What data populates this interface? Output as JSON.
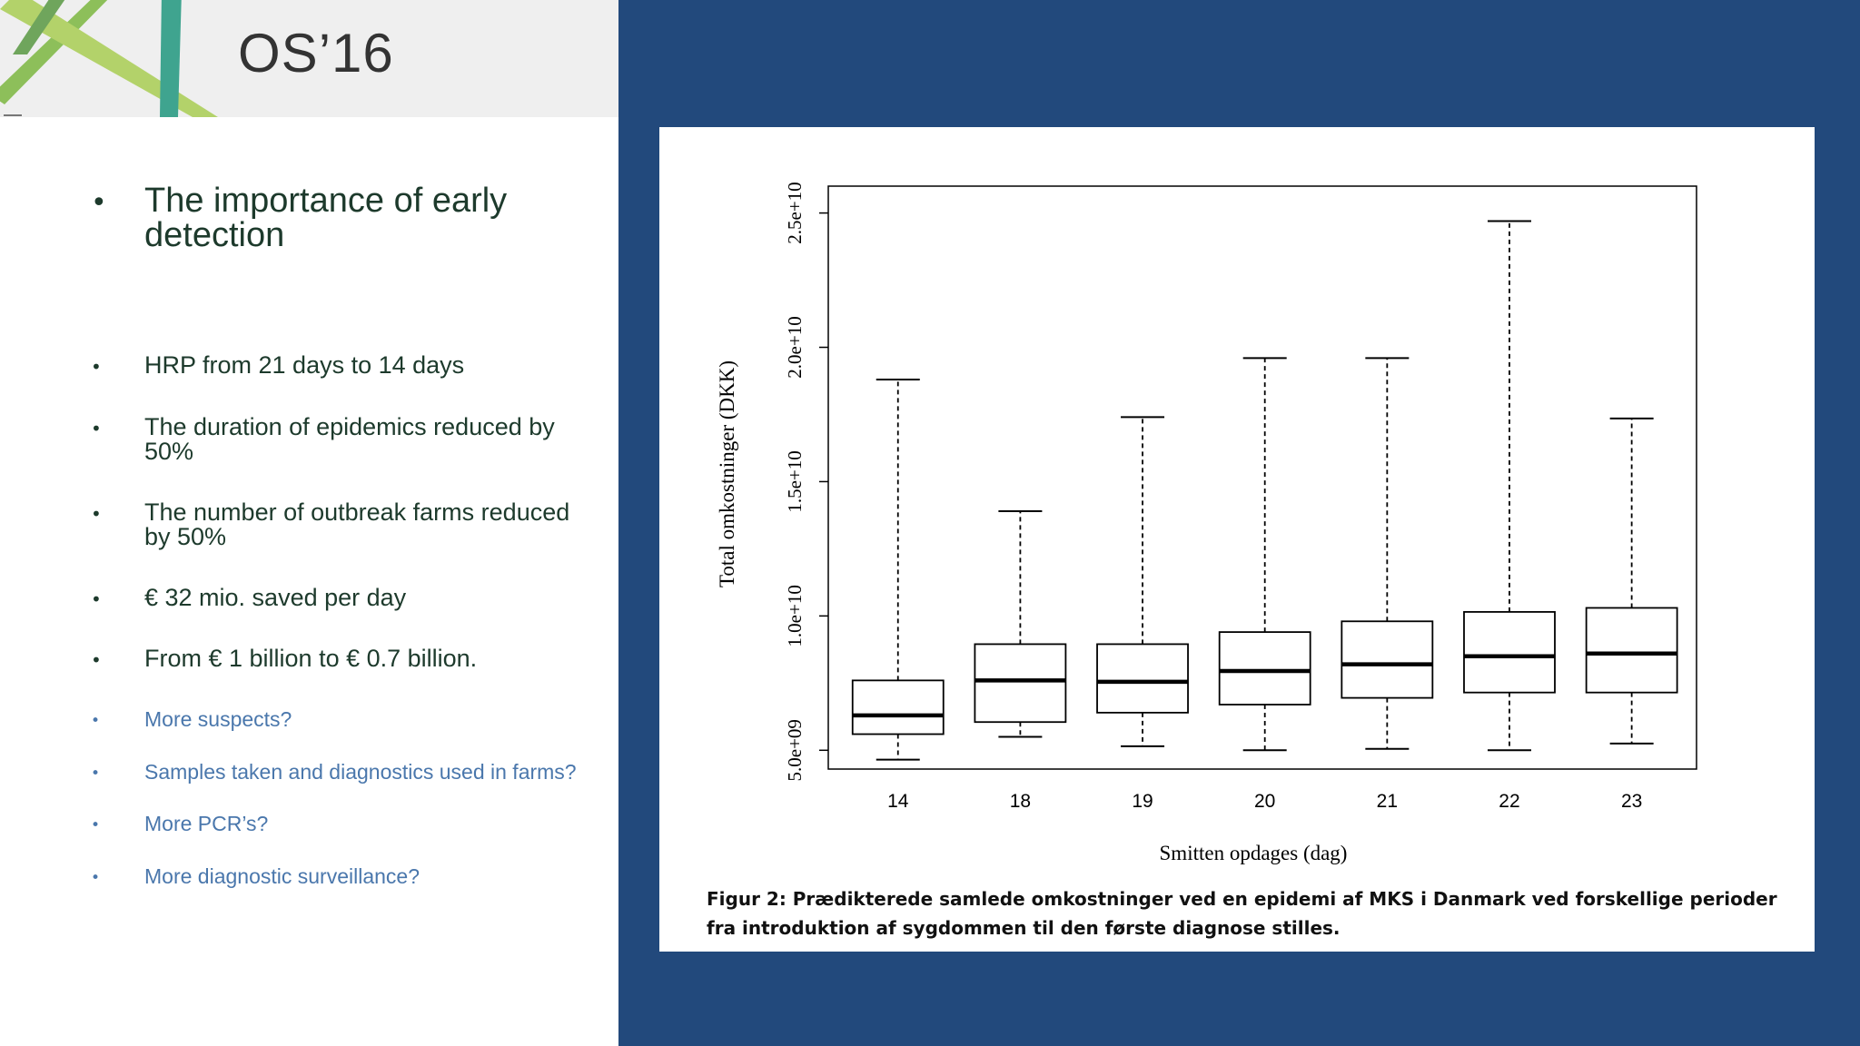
{
  "header": {
    "logo_text": "OS’16"
  },
  "bullets": {
    "title": "The importance of early detection",
    "main": [
      "HRP from 21 days to 14 days",
      "The duration of epidemics reduced by 50%",
      "The number of outbreak farms reduced by 50%",
      "€ 32 mio. saved per day",
      "From € 1 billion to €  0.7 billion."
    ],
    "questions": [
      "More suspects?",
      "Samples taken and diagnostics used in farms?",
      "More PCR’s?",
      "More diagnostic surveillance?"
    ]
  },
  "colors": {
    "panel_bg": "#22497c",
    "bullet_text": "#1d3a2c",
    "question_text": "#4a77ac"
  },
  "chart_data": {
    "type": "boxplot",
    "xlabel": "Smitten opdages (dag)",
    "ylabel": "Total omkostninger (DKK)",
    "ylim": [
      5000000000.0,
      25000000000.0
    ],
    "yticks": [
      {
        "value": 5000000000.0,
        "label": "5.0e+09"
      },
      {
        "value": 10000000000.0,
        "label": "1.0e+10"
      },
      {
        "value": 15000000000.0,
        "label": "1.5e+10"
      },
      {
        "value": 20000000000.0,
        "label": "2.0e+10"
      },
      {
        "value": 25000000000.0,
        "label": "2.5e+10"
      }
    ],
    "categories": [
      "14",
      "18",
      "19",
      "20",
      "21",
      "22",
      "23"
    ],
    "boxes": [
      {
        "label": "14",
        "min": 4650000000.0,
        "q1": 5600000000.0,
        "median": 6300000000.0,
        "q3": 7600000000.0,
        "max": 18800000000.0
      },
      {
        "label": "18",
        "min": 5500000000.0,
        "q1": 6050000000.0,
        "median": 7600000000.0,
        "q3": 8950000000.0,
        "max": 13900000000.0
      },
      {
        "label": "19",
        "min": 5150000000.0,
        "q1": 6400000000.0,
        "median": 7550000000.0,
        "q3": 8950000000.0,
        "max": 17400000000.0
      },
      {
        "label": "20",
        "min": 5000000000.0,
        "q1": 6700000000.0,
        "median": 7950000000.0,
        "q3": 9400000000.0,
        "max": 19600000000.0
      },
      {
        "label": "21",
        "min": 5050000000.0,
        "q1": 6950000000.0,
        "median": 8200000000.0,
        "q3": 9800000000.0,
        "max": 19600000000.0
      },
      {
        "label": "22",
        "min": 5000000000.0,
        "q1": 7150000000.0,
        "median": 8500000000.0,
        "q3": 10150000000.0,
        "max": 24700000000.0
      },
      {
        "label": "23",
        "min": 5250000000.0,
        "q1": 7150000000.0,
        "median": 8600000000.0,
        "q3": 10300000000.0,
        "max": 17350000000.0
      }
    ],
    "caption": "Figur 2: Prædikterede samlede omkostninger ved en epidemi af MKS i Danmark ved forskellige perioder fra introduktion af sygdommen til den første diagnose stilles."
  }
}
